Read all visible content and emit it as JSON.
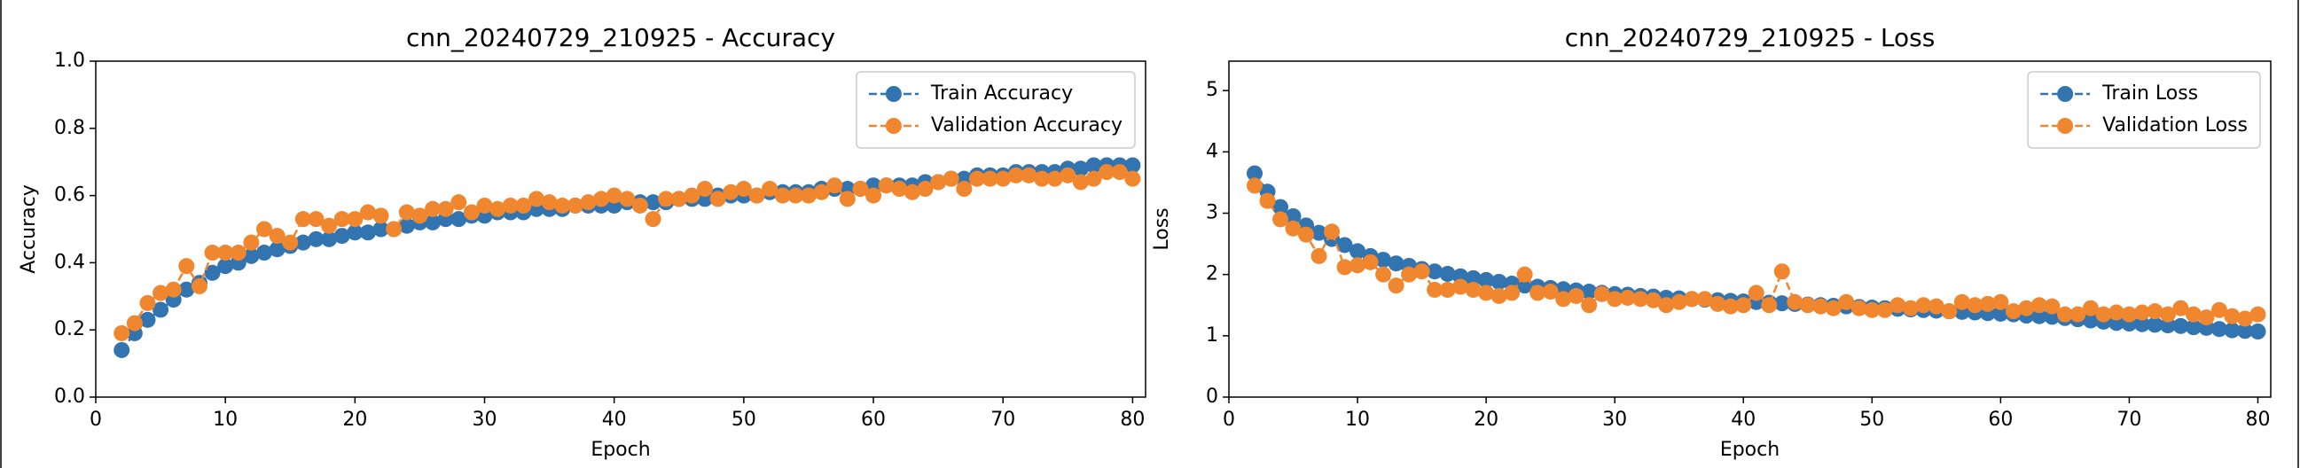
{
  "chart_data": [
    {
      "type": "line",
      "title": "cnn_20240729_210925 - Accuracy",
      "xlabel": "Epoch",
      "ylabel": "Accuracy",
      "x": [
        2,
        3,
        4,
        5,
        6,
        7,
        8,
        9,
        10,
        11,
        12,
        13,
        14,
        15,
        16,
        17,
        18,
        19,
        20,
        21,
        22,
        23,
        24,
        25,
        26,
        27,
        28,
        29,
        30,
        31,
        32,
        33,
        34,
        35,
        36,
        37,
        38,
        39,
        40,
        41,
        42,
        43,
        44,
        45,
        46,
        47,
        48,
        49,
        50,
        51,
        52,
        53,
        54,
        55,
        56,
        57,
        58,
        59,
        60,
        61,
        62,
        63,
        64,
        65,
        66,
        67,
        68,
        69,
        70,
        71,
        72,
        73,
        74,
        75,
        76,
        77,
        78,
        79,
        80
      ],
      "series": [
        {
          "name": "Train Accuracy",
          "color": "#3274b0",
          "values": [
            0.14,
            0.19,
            0.23,
            0.26,
            0.29,
            0.32,
            0.34,
            0.37,
            0.39,
            0.4,
            0.42,
            0.43,
            0.44,
            0.45,
            0.46,
            0.47,
            0.47,
            0.48,
            0.49,
            0.49,
            0.5,
            0.5,
            0.51,
            0.52,
            0.52,
            0.53,
            0.53,
            0.54,
            0.54,
            0.55,
            0.55,
            0.55,
            0.56,
            0.56,
            0.56,
            0.57,
            0.57,
            0.57,
            0.57,
            0.58,
            0.58,
            0.58,
            0.58,
            0.59,
            0.59,
            0.59,
            0.6,
            0.6,
            0.6,
            0.6,
            0.61,
            0.61,
            0.61,
            0.61,
            0.62,
            0.62,
            0.62,
            0.62,
            0.63,
            0.63,
            0.63,
            0.63,
            0.64,
            0.64,
            0.65,
            0.65,
            0.66,
            0.66,
            0.66,
            0.67,
            0.67,
            0.67,
            0.67,
            0.68,
            0.68,
            0.69,
            0.69,
            0.69,
            0.69
          ]
        },
        {
          "name": "Validation Accuracy",
          "color": "#f0862e",
          "values": [
            0.19,
            0.22,
            0.28,
            0.31,
            0.32,
            0.39,
            0.33,
            0.43,
            0.43,
            0.43,
            0.46,
            0.5,
            0.48,
            0.46,
            0.53,
            0.53,
            0.51,
            0.53,
            0.53,
            0.55,
            0.54,
            0.5,
            0.55,
            0.54,
            0.56,
            0.56,
            0.58,
            0.55,
            0.57,
            0.56,
            0.57,
            0.57,
            0.59,
            0.58,
            0.57,
            0.57,
            0.58,
            0.59,
            0.6,
            0.59,
            0.57,
            0.53,
            0.59,
            0.59,
            0.6,
            0.62,
            0.59,
            0.61,
            0.62,
            0.6,
            0.62,
            0.6,
            0.6,
            0.6,
            0.61,
            0.63,
            0.59,
            0.62,
            0.6,
            0.63,
            0.62,
            0.61,
            0.62,
            0.64,
            0.65,
            0.62,
            0.65,
            0.65,
            0.65,
            0.66,
            0.66,
            0.65,
            0.65,
            0.66,
            0.64,
            0.65,
            0.67,
            0.67,
            0.65
          ]
        }
      ],
      "xlim": [
        0,
        81
      ],
      "xticks": [
        0,
        10,
        20,
        30,
        40,
        50,
        60,
        70,
        80
      ],
      "ylim": [
        0,
        1
      ],
      "yticks": [
        {
          "value": 0,
          "label": "0.0"
        },
        0.2,
        0.4,
        0.6,
        0.8,
        {
          "value": 1,
          "label": "1.0"
        }
      ],
      "legend": "upper right",
      "line_style": "dashed",
      "marker": "circle"
    },
    {
      "type": "line",
      "title": "cnn_20240729_210925 - Loss",
      "xlabel": "Epoch",
      "ylabel": "Loss",
      "x": [
        2,
        3,
        4,
        5,
        6,
        7,
        8,
        9,
        10,
        11,
        12,
        13,
        14,
        15,
        16,
        17,
        18,
        19,
        20,
        21,
        22,
        23,
        24,
        25,
        26,
        27,
        28,
        29,
        30,
        31,
        32,
        33,
        34,
        35,
        36,
        37,
        38,
        39,
        40,
        41,
        42,
        43,
        44,
        45,
        46,
        47,
        48,
        49,
        50,
        51,
        52,
        53,
        54,
        55,
        56,
        57,
        58,
        59,
        60,
        61,
        62,
        63,
        64,
        65,
        66,
        67,
        68,
        69,
        70,
        71,
        72,
        73,
        74,
        75,
        76,
        77,
        78,
        79,
        80
      ],
      "series": [
        {
          "name": "Train Loss",
          "color": "#3274b0",
          "values": [
            3.65,
            3.35,
            3.1,
            2.95,
            2.8,
            2.68,
            2.58,
            2.48,
            2.38,
            2.3,
            2.24,
            2.18,
            2.14,
            2.09,
            2.05,
            2.01,
            1.97,
            1.94,
            1.91,
            1.88,
            1.85,
            1.82,
            1.8,
            1.78,
            1.76,
            1.74,
            1.72,
            1.7,
            1.68,
            1.67,
            1.65,
            1.64,
            1.62,
            1.61,
            1.6,
            1.59,
            1.58,
            1.57,
            1.56,
            1.55,
            1.54,
            1.53,
            1.52,
            1.51,
            1.5,
            1.49,
            1.48,
            1.47,
            1.46,
            1.45,
            1.44,
            1.43,
            1.42,
            1.41,
            1.4,
            1.39,
            1.38,
            1.37,
            1.36,
            1.35,
            1.33,
            1.32,
            1.31,
            1.29,
            1.27,
            1.25,
            1.23,
            1.21,
            1.2,
            1.19,
            1.18,
            1.17,
            1.16,
            1.14,
            1.13,
            1.11,
            1.09,
            1.08,
            1.07
          ]
        },
        {
          "name": "Validation Loss",
          "color": "#f0862e",
          "values": [
            3.45,
            3.2,
            2.9,
            2.75,
            2.65,
            2.3,
            2.7,
            2.12,
            2.15,
            2.2,
            2.0,
            1.82,
            2.0,
            2.05,
            1.75,
            1.75,
            1.8,
            1.75,
            1.7,
            1.65,
            1.7,
            2.0,
            1.7,
            1.72,
            1.6,
            1.65,
            1.5,
            1.68,
            1.6,
            1.62,
            1.6,
            1.58,
            1.5,
            1.55,
            1.6,
            1.6,
            1.52,
            1.48,
            1.5,
            1.7,
            1.5,
            2.05,
            1.55,
            1.5,
            1.48,
            1.45,
            1.55,
            1.45,
            1.42,
            1.42,
            1.5,
            1.45,
            1.5,
            1.48,
            1.4,
            1.55,
            1.5,
            1.52,
            1.55,
            1.4,
            1.45,
            1.5,
            1.48,
            1.35,
            1.35,
            1.45,
            1.35,
            1.38,
            1.35,
            1.38,
            1.4,
            1.35,
            1.45,
            1.35,
            1.3,
            1.42,
            1.32,
            1.28,
            1.35
          ]
        }
      ],
      "xlim": [
        0,
        81
      ],
      "xticks": [
        0,
        10,
        20,
        30,
        40,
        50,
        60,
        70,
        80
      ],
      "ylim": [
        0,
        5.48
      ],
      "yticks": [
        0,
        1,
        2,
        3,
        4,
        5
      ],
      "legend": "upper right",
      "line_style": "dashed",
      "marker": "circle"
    }
  ]
}
